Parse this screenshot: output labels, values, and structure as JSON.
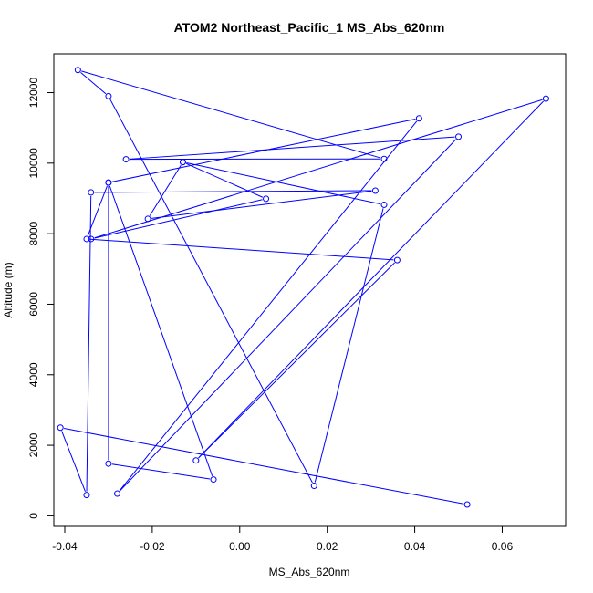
{
  "chart_data": {
    "type": "line",
    "title": "ATOM2 Northeast_Pacific_1 MS_Abs_620nm",
    "xlabel": "MS_Abs_620nm",
    "ylabel": "Altitude (m)",
    "xlim": [
      -0.0425,
      0.0745
    ],
    "ylim": [
      -300,
      13100
    ],
    "xticks": [
      -0.04,
      -0.02,
      0.0,
      0.02,
      0.04,
      0.06
    ],
    "xtick_labels": [
      "-0.04",
      "-0.02",
      "0.00",
      "0.02",
      "0.04",
      "0.06"
    ],
    "yticks": [
      0,
      2000,
      4000,
      6000,
      8000,
      10000,
      12000
    ],
    "ytick_labels": [
      "0",
      "2000",
      "4000",
      "6000",
      "8000",
      "10000",
      "12000"
    ],
    "grid": false,
    "line_color": "#0000ff",
    "marker": "open-circle",
    "series": [
      {
        "x": [
          0.052,
          -0.041,
          -0.035,
          -0.034,
          0.031,
          -0.021,
          -0.013,
          0.033,
          0.017,
          -0.03,
          -0.037,
          0.033,
          -0.026,
          0.05,
          -0.028,
          0.041,
          -0.03,
          -0.03,
          -0.006,
          -0.03,
          -0.035,
          0.036,
          -0.01,
          0.07,
          -0.034,
          0.006,
          -0.013
        ],
        "y": [
          320,
          2500,
          590,
          9170,
          9220,
          8420,
          10030,
          8820,
          850,
          11900,
          12640,
          10120,
          10110,
          10750,
          630,
          11270,
          9450,
          1480,
          1030,
          9450,
          7850,
          7250,
          1570,
          11830,
          7850,
          8990,
          10030
        ]
      }
    ]
  }
}
